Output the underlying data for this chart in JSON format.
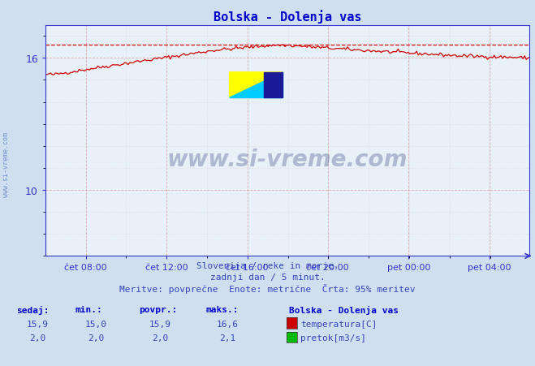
{
  "title": "Bolska - Dolenja vas",
  "bg_color": "#d0dff0",
  "plot_bg_color": "#e8f0f8",
  "x_labels": [
    "čet 08:00",
    "čet 12:00",
    "čet 16:00",
    "čet 20:00",
    "pet 00:00",
    "pet 04:00"
  ],
  "x_ticks_norm": [
    0.083,
    0.25,
    0.417,
    0.583,
    0.75,
    0.917
  ],
  "y_min": 7.0,
  "y_max": 17.5,
  "y_ticks": [
    10,
    16
  ],
  "temp_max_line": 16.6,
  "subtitle_line1": "Slovenija / reke in morje.",
  "subtitle_line2": "zadnji dan / 5 minut.",
  "subtitle_line3": "Meritve: povprečne  Enote: metrične  Črta: 95% meritev",
  "legend_title": "Bolska - Dolenja vas",
  "legend_items": [
    "temperatura[C]",
    "pretok[m3/s]"
  ],
  "legend_colors": [
    "#cc0000",
    "#00bb00"
  ],
  "stats_headers": [
    "sedaj:",
    "min.:",
    "povpr.:",
    "maks.:"
  ],
  "stats_temp": [
    "15,9",
    "15,0",
    "15,9",
    "16,6"
  ],
  "stats_flow": [
    "2,0",
    "2,0",
    "2,0",
    "2,1"
  ],
  "watermark_text": "www.si-vreme.com",
  "watermark_side": "www.si-vreme.com",
  "temp_color": "#cc0000",
  "flow_color": "#00aa00",
  "axis_color": "#3333cc",
  "grid_color_major": "#dd9999",
  "grid_color_minor": "#ddbbbb",
  "title_color": "#0000cc",
  "text_color": "#3344bb",
  "stats_color": "#3344bb",
  "header_color": "#0000cc"
}
